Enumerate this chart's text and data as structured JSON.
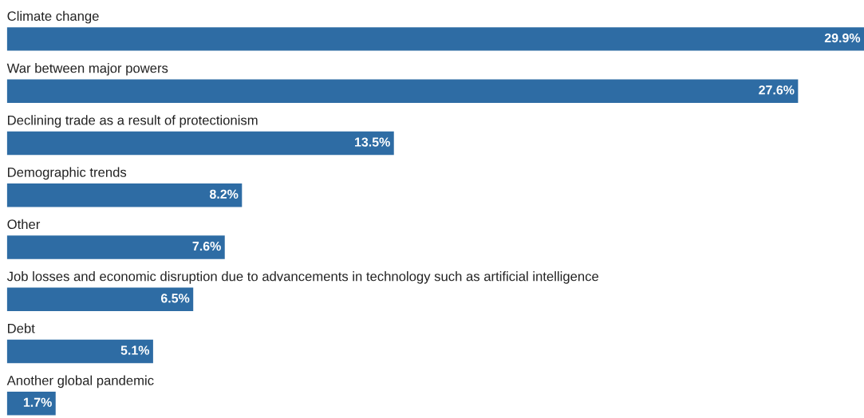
{
  "chart_data": {
    "type": "bar",
    "orientation": "horizontal",
    "categories": [
      "Climate change",
      "War between major powers",
      "Declining trade as a result of protectionism",
      "Demographic trends",
      "Other",
      "Job losses and economic disruption due to advancements in technology such as artificial intelligence",
      "Debt",
      "Another global pandemic"
    ],
    "values": [
      29.9,
      27.6,
      13.5,
      8.2,
      7.6,
      6.5,
      5.1,
      1.7
    ],
    "value_labels": [
      "29.9%",
      "27.6%",
      "13.5%",
      "8.2%",
      "7.6%",
      "6.5%",
      "5.1%",
      "1.7%"
    ],
    "color": "#2e6ca4"
  }
}
